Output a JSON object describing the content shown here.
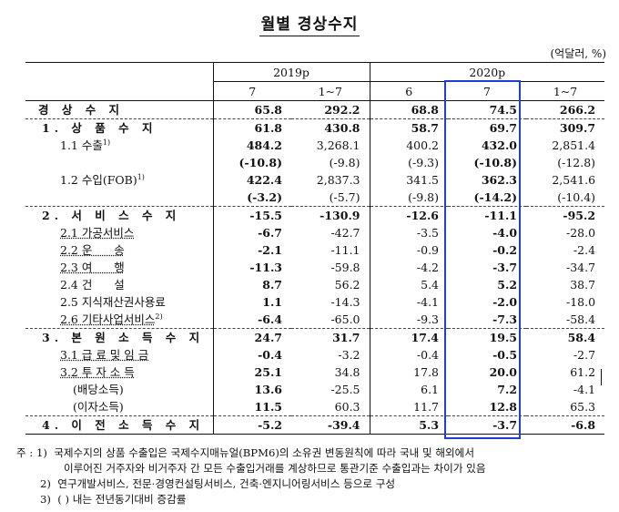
{
  "title": "월별 경상수지",
  "unit": "(억달러, %)",
  "header": {
    "year_2019": "2019p",
    "year_2020": "2020p",
    "cols": [
      "7",
      "1~7",
      "6",
      "7",
      "1~7"
    ]
  },
  "rows": [
    {
      "label": "경 상 수 지",
      "values": [
        "65.8",
        "292.2",
        "68.8",
        "74.5",
        "266.2"
      ]
    },
    {
      "label": "1. 상 품 수 지",
      "values": [
        "61.8",
        "430.8",
        "58.7",
        "69.7",
        "309.7"
      ]
    },
    {
      "label": "1.1 수출",
      "sup": "1)",
      "values": [
        "484.2",
        "3,268.1",
        "400.2",
        "432.0",
        "2,851.4"
      ]
    },
    {
      "label": "",
      "values": [
        "(-10.8)",
        "(-9.8)",
        "(-9.3)",
        "(-10.8)",
        "(-12.8)"
      ]
    },
    {
      "label": "1.2 수입(FOB)",
      "sup": "1)",
      "values": [
        "422.4",
        "2,837.3",
        "341.5",
        "362.3",
        "2,541.6"
      ]
    },
    {
      "label": "",
      "values": [
        "(-3.2)",
        "(-5.7)",
        "(-9.8)",
        "(-14.2)",
        "(-10.4)"
      ]
    },
    {
      "label": "2. 서 비 스 수 지",
      "values": [
        "-15.5",
        "-130.9",
        "-12.6",
        "-11.1",
        "-95.2"
      ]
    },
    {
      "label": "2.1 가공서비스",
      "values": [
        "-6.7",
        "-42.7",
        "-3.5",
        "-4.0",
        "-28.0"
      ]
    },
    {
      "label": "2.2 운      송",
      "values": [
        "-2.1",
        "-11.1",
        "-0.9",
        "-0.2",
        "-2.4"
      ]
    },
    {
      "label": "2.3 여      행",
      "values": [
        "-11.3",
        "-59.8",
        "-4.2",
        "-3.7",
        "-34.7"
      ]
    },
    {
      "label": "2.4 건      설",
      "values": [
        "8.7",
        "56.2",
        "5.4",
        "5.2",
        "38.7"
      ]
    },
    {
      "label": "2.5 지식재산권사용료",
      "values": [
        "1.1",
        "-14.3",
        "-4.1",
        "-2.0",
        "-18.0"
      ]
    },
    {
      "label": "2.6 기타사업서비스",
      "sup": "2)",
      "values": [
        "-6.4",
        "-65.0",
        "-9.3",
        "-7.3",
        "-58.4"
      ]
    },
    {
      "label": "3. 본 원 소 득 수 지",
      "values": [
        "24.7",
        "31.7",
        "17.4",
        "19.5",
        "58.4"
      ]
    },
    {
      "label": "3.1 급 료 및 임 금",
      "values": [
        "-0.4",
        "-3.2",
        "-0.4",
        "-0.5",
        "-2.7"
      ]
    },
    {
      "label": "3.2 투 자 소 득",
      "values": [
        "25.1",
        "34.8",
        "17.8",
        "20.0",
        "61.2"
      ]
    },
    {
      "label": "(배당소득)",
      "values": [
        "13.6",
        "-25.5",
        "6.1",
        "7.2",
        "-4.1"
      ]
    },
    {
      "label": "(이자소득)",
      "values": [
        "11.5",
        "60.3",
        "11.7",
        "12.8",
        "65.3"
      ]
    },
    {
      "label": "4. 이 전 소 득 수 지",
      "values": [
        "-5.2",
        "-39.4",
        "5.3",
        "-3.7",
        "-6.8"
      ]
    }
  ],
  "notes": {
    "n1_prefix": "주 : 1)",
    "n1_line1": "국제수지의 상품 수출입은 국제수지매뉴얼(BPM6)의 소유권 변동원칙에 따라 국내 및 해외에서",
    "n1_line2": "이루어진 거주자와 비거주자 간 모든 수출입거래를 계상하므로 통관기준 수출입과는 차이가 있음",
    "n2_prefix": "2)",
    "n2": "연구개발서비스, 전문·경영컨설팅서비스, 건축·엔지니어링서비스 등으로 구성",
    "n3_prefix": "3)",
    "n3": "(  ) 내는 전년동기대비 증감률"
  }
}
